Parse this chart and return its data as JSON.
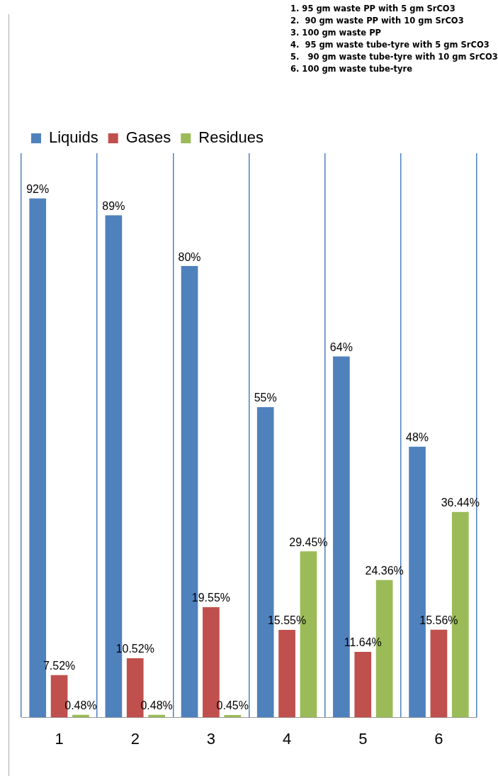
{
  "chart_data": {
    "type": "bar",
    "categories": [
      "1",
      "2",
      "3",
      "4",
      "5",
      "6"
    ],
    "series": [
      {
        "name": "Liquids",
        "color": "#4f81bd",
        "values": [
          92,
          89,
          80,
          55,
          64,
          48
        ],
        "value_labels": [
          "92%",
          "89%",
          "80%",
          "55%",
          "64%",
          "48%"
        ]
      },
      {
        "name": "Gases",
        "color": "#c0504d",
        "values": [
          7.52,
          10.52,
          19.55,
          15.55,
          11.64,
          15.56
        ],
        "value_labels": [
          "7.52%",
          "10.52%",
          "19.55%",
          "15.55%",
          "11.64%",
          "15.56%"
        ]
      },
      {
        "name": "Residues",
        "color": "#9bbb59",
        "values": [
          0.48,
          0.48,
          0.45,
          29.45,
          24.36,
          36.44
        ],
        "value_labels": [
          "0.48%",
          "0.48%",
          "0.45%",
          "29.45%",
          "24.36%",
          "36.44%"
        ]
      }
    ],
    "annotations": [
      "1. 95 gm waste PP with 5 gm SrCO3",
      "2.  90 gm waste PP with 10 gm SrCO3",
      "3. 100 gm waste PP",
      "4.  95 gm waste tube-tyre with 5 gm SrCO3",
      "5.   90 gm waste tube-tyre with 10 gm SrCO3",
      "6. 100 gm waste tube-tyre"
    ],
    "legend": "top left",
    "grid": "x"
  }
}
